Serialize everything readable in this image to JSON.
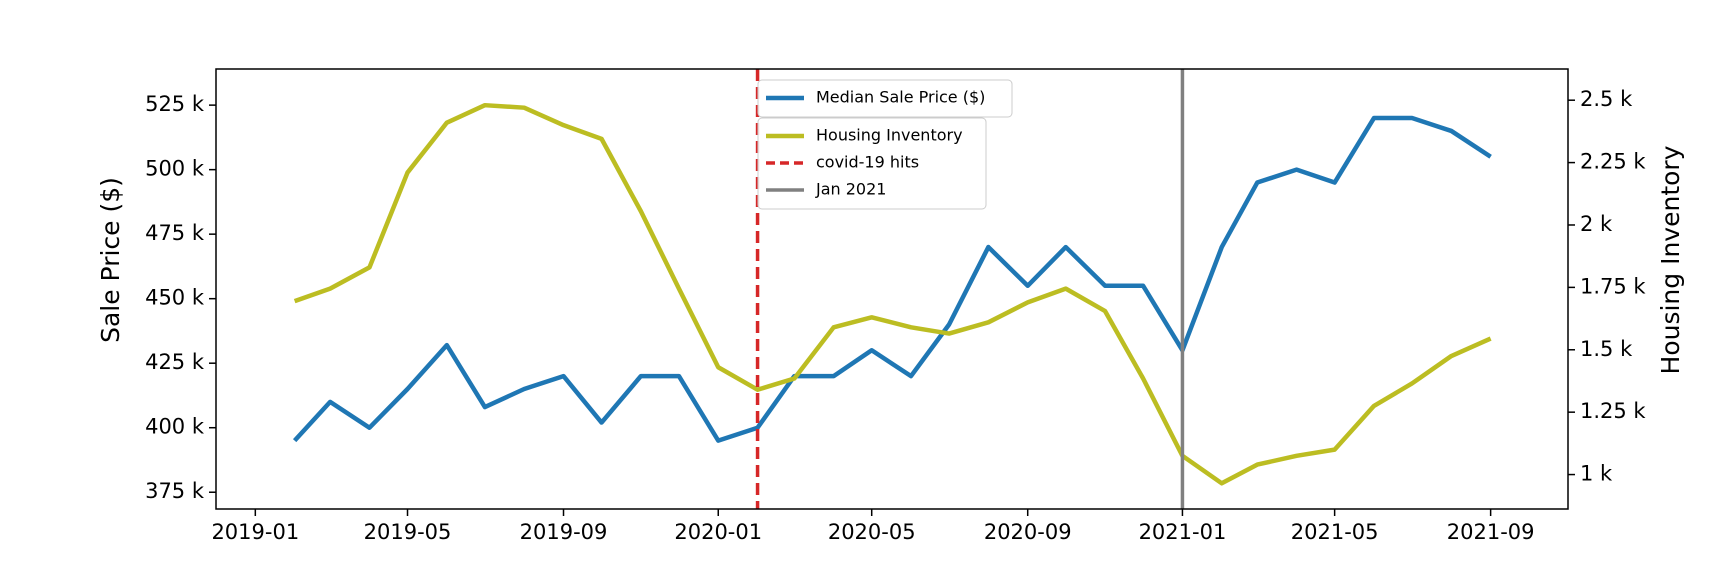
{
  "chart_data": {
    "type": "line",
    "x": [
      "2019-02",
      "2019-03",
      "2019-04",
      "2019-05",
      "2019-06",
      "2019-07",
      "2019-08",
      "2019-09",
      "2019-10",
      "2019-11",
      "2019-12",
      "2020-01",
      "2020-02",
      "2020-03",
      "2020-04",
      "2020-05",
      "2020-06",
      "2020-07",
      "2020-08",
      "2020-09",
      "2020-10",
      "2020-11",
      "2020-12",
      "2021-01",
      "2021-02",
      "2021-03",
      "2021-04",
      "2021-05",
      "2021-06",
      "2021-07",
      "2021-08",
      "2021-09"
    ],
    "series": [
      {
        "name": "Median Sale Price ($)",
        "color": "#1f77b4",
        "values": [
          395000,
          410000,
          400000,
          415000,
          432000,
          408000,
          415000,
          420000,
          402000,
          420000,
          420000,
          395000,
          400000,
          420000,
          420000,
          430000,
          420000,
          440000,
          470000,
          455000,
          470000,
          455000,
          455000,
          430000,
          470000,
          495000,
          500000,
          495000,
          520000,
          520000,
          515000,
          505000
        ]
      },
      {
        "name": "Housing Inventory",
        "color": "#bcbd22",
        "axis": "y2",
        "values": [
          1695,
          1745,
          1830,
          2210,
          2410,
          2480,
          2470,
          2400,
          2345,
          2055,
          1745,
          1430,
          1340,
          1385,
          1590,
          1630,
          1590,
          1565,
          1610,
          1690,
          1745,
          1655,
          1385,
          1075,
          965,
          1040,
          1075,
          1100,
          1275,
          1365,
          1475,
          1545
        ]
      }
    ],
    "vlines": [
      {
        "name": "covid-19 hits",
        "x": "2020-02",
        "color": "#d62728",
        "style": "dashed"
      },
      {
        "name": "Jan 2021",
        "x": "2021-01",
        "color": "#808080",
        "style": "solid"
      }
    ],
    "ylabel": "Sale Price ($)",
    "y2label": "Housing Inventory",
    "xlim": [
      "2018-12",
      "2021-11"
    ],
    "xticks": [
      "2019-01",
      "2019-05",
      "2019-09",
      "2020-01",
      "2020-05",
      "2020-09",
      "2021-01",
      "2021-05",
      "2021-09"
    ],
    "ylim": [
      368500,
      539000
    ],
    "yticks": [
      {
        "value": 375000,
        "label": "375 k"
      },
      {
        "value": 400000,
        "label": "400 k"
      },
      {
        "value": 425000,
        "label": "425 k"
      },
      {
        "value": 450000,
        "label": "450 k"
      },
      {
        "value": 475000,
        "label": "475 k"
      },
      {
        "value": 500000,
        "label": "500 k"
      },
      {
        "value": 525000,
        "label": "525 k"
      }
    ],
    "y2lim": [
      862,
      2625
    ],
    "y2ticks": [
      {
        "value": 1000,
        "label": "1 k"
      },
      {
        "value": 1250,
        "label": "1.25 k"
      },
      {
        "value": 1500,
        "label": "1.5 k"
      },
      {
        "value": 1750,
        "label": "1.75 k"
      },
      {
        "value": 2000,
        "label": "2 k"
      },
      {
        "value": 2250,
        "label": "2.25 k"
      },
      {
        "value": 2500,
        "label": "2.5 k"
      }
    ]
  }
}
